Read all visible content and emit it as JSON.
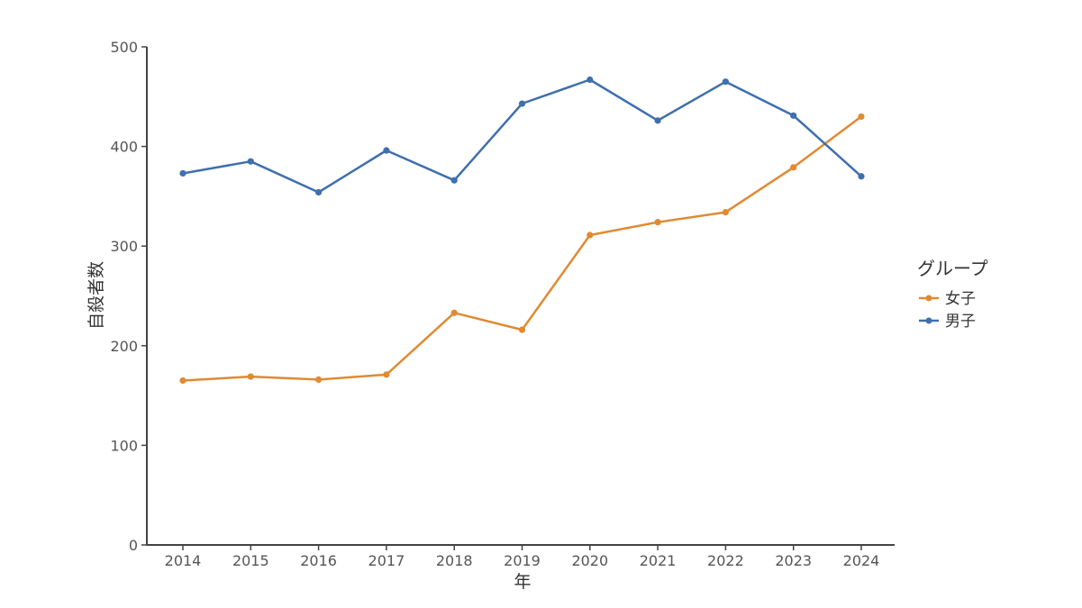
{
  "chart_data": {
    "type": "line",
    "xlabel": "年",
    "ylabel": "自殺者数",
    "x": [
      2014,
      2015,
      2016,
      2017,
      2018,
      2019,
      2020,
      2021,
      2022,
      2023,
      2024
    ],
    "ylim": [
      0,
      500
    ],
    "yticks": [
      0,
      100,
      200,
      300,
      400,
      500
    ],
    "grid": false,
    "legend": {
      "title": "グループ",
      "position": "right"
    },
    "series": [
      {
        "name": "女子",
        "color": "#e08a33",
        "values": [
          165,
          169,
          166,
          171,
          233,
          216,
          311,
          324,
          334,
          379,
          430
        ]
      },
      {
        "name": "男子",
        "color": "#3f6fae",
        "values": [
          373,
          385,
          354,
          396,
          366,
          443,
          467,
          426,
          465,
          431,
          370
        ]
      }
    ]
  }
}
